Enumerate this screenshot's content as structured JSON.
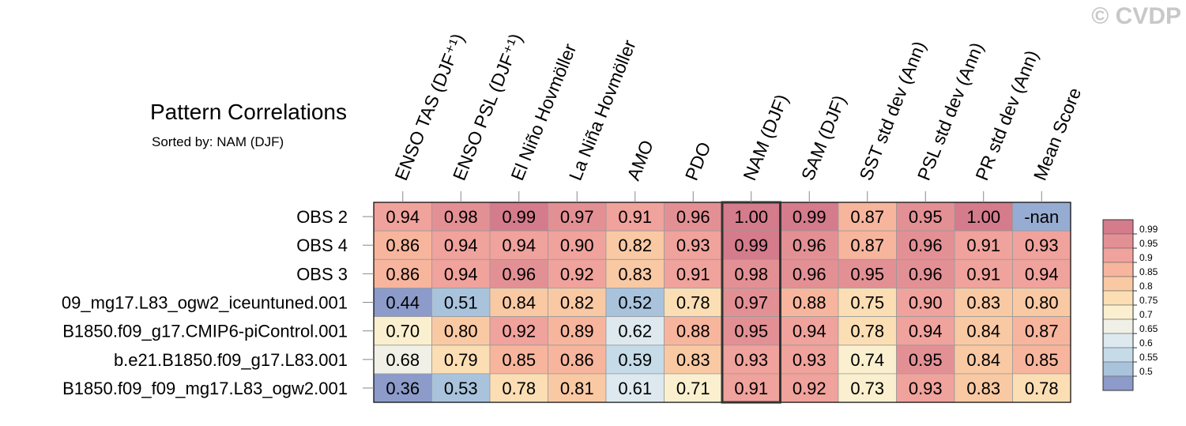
{
  "watermark": "© CVDP",
  "chart_data": {
    "type": "heatmap",
    "title": "Pattern Correlations",
    "subtitle": "Sorted by: NAM (DJF)",
    "columns": [
      "ENSO TAS (DJF⁺¹)",
      "ENSO PSL (DJF⁺¹)",
      "El Niño Hovmöller",
      "La Niña Hovmöller",
      "AMO",
      "PDO",
      "NAM (DJF)",
      "SAM (DJF)",
      "SST std dev (Ann)",
      "PSL std dev (Ann)",
      "PR std dev (Ann)",
      "Mean Score"
    ],
    "rows": [
      "OBS 2",
      "OBS 4",
      "OBS 3",
      "09_mg17.L83_ogw2_iceuntuned.001",
      "B1850.f09_g17.CMIP6-piControl.001",
      "b.e21.B1850.f09_g17.L83.001",
      "B1850.f09_f09_mg17.L83_ogw2.001"
    ],
    "values": [
      [
        0.94,
        0.98,
        0.99,
        0.97,
        0.91,
        0.96,
        1.0,
        0.99,
        0.87,
        0.95,
        1.0,
        null
      ],
      [
        0.86,
        0.94,
        0.94,
        0.9,
        0.82,
        0.93,
        0.99,
        0.96,
        0.87,
        0.96,
        0.91,
        0.93
      ],
      [
        0.86,
        0.94,
        0.96,
        0.92,
        0.83,
        0.91,
        0.98,
        0.96,
        0.95,
        0.96,
        0.91,
        0.94
      ],
      [
        0.44,
        0.51,
        0.84,
        0.82,
        0.52,
        0.78,
        0.97,
        0.88,
        0.75,
        0.9,
        0.83,
        0.8
      ],
      [
        0.7,
        0.8,
        0.92,
        0.89,
        0.62,
        0.88,
        0.95,
        0.94,
        0.78,
        0.94,
        0.84,
        0.87
      ],
      [
        0.68,
        0.79,
        0.85,
        0.86,
        0.59,
        0.83,
        0.93,
        0.93,
        0.74,
        0.95,
        0.84,
        0.85
      ],
      [
        0.36,
        0.53,
        0.78,
        0.81,
        0.61,
        0.71,
        0.91,
        0.92,
        0.73,
        0.93,
        0.83,
        0.78
      ]
    ],
    "cell_labels": [
      [
        "0.94",
        "0.98",
        "0.99",
        "0.97",
        "0.91",
        "0.96",
        "1.00",
        "0.99",
        "0.87",
        "0.95",
        "1.00",
        "-nan"
      ],
      [
        "0.86",
        "0.94",
        "0.94",
        "0.90",
        "0.82",
        "0.93",
        "0.99",
        "0.96",
        "0.87",
        "0.96",
        "0.91",
        "0.93"
      ],
      [
        "0.86",
        "0.94",
        "0.96",
        "0.92",
        "0.83",
        "0.91",
        "0.98",
        "0.96",
        "0.95",
        "0.96",
        "0.91",
        "0.94"
      ],
      [
        "0.44",
        "0.51",
        "0.84",
        "0.82",
        "0.52",
        "0.78",
        "0.97",
        "0.88",
        "0.75",
        "0.90",
        "0.83",
        "0.80"
      ],
      [
        "0.70",
        "0.80",
        "0.92",
        "0.89",
        "0.62",
        "0.88",
        "0.95",
        "0.94",
        "0.78",
        "0.94",
        "0.84",
        "0.87"
      ],
      [
        "0.68",
        "0.79",
        "0.85",
        "0.86",
        "0.59",
        "0.83",
        "0.93",
        "0.93",
        "0.74",
        "0.95",
        "0.84",
        "0.85"
      ],
      [
        "0.36",
        "0.53",
        "0.78",
        "0.81",
        "0.61",
        "0.71",
        "0.91",
        "0.92",
        "0.73",
        "0.93",
        "0.83",
        "0.78"
      ]
    ],
    "highlighted_column": "NAM (DJF)",
    "nan_color": "#97acd2",
    "colorbar": {
      "levels": [
        "0.99",
        "0.95",
        "0.9",
        "0.85",
        "0.8",
        "0.75",
        "0.7",
        "0.65",
        "0.6",
        "0.55",
        "0.5"
      ],
      "colors": [
        "#d47b8c",
        "#e39095",
        "#f0a29c",
        "#f7b59d",
        "#f9c9a4",
        "#fbdeb4",
        "#faf0cf",
        "#f0f0e6",
        "#dde9ef",
        "#c6dbe8",
        "#a9c3dc",
        "#8c9bc9"
      ]
    }
  }
}
